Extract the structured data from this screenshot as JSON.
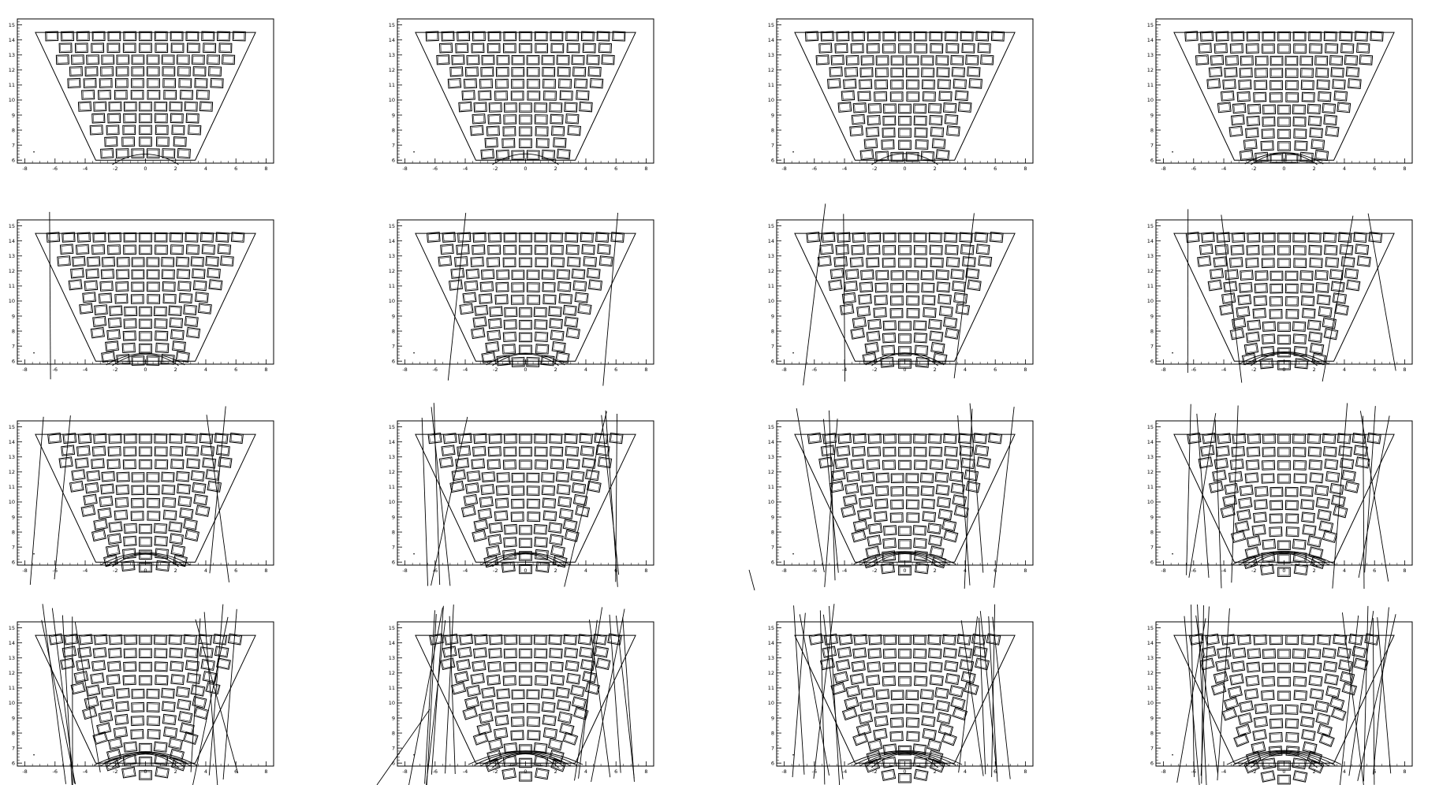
{
  "figure": {
    "rows": 4,
    "cols": 4,
    "line_color": "#000000",
    "background": "#ffffff"
  },
  "chart_data": {
    "type": "grid-of-panels",
    "x_ticks": [
      "-8",
      "-6",
      "-4",
      "-2",
      "0",
      "2",
      "4",
      "6",
      "8"
    ],
    "y_ticks": [
      "6",
      "7",
      "8",
      "9",
      "10",
      "11",
      "12",
      "13",
      "14",
      "15"
    ],
    "xlim": [
      -8.5,
      8.5
    ],
    "ylim": [
      5.8,
      15.4
    ],
    "envelope": {
      "y_top": 14.5,
      "x_top": [
        -7.3,
        7.3
      ],
      "y_bottom": 6.0,
      "x_bottom": [
        -3.3,
        3.3
      ]
    },
    "panels": [
      {
        "index": 1,
        "sag": 0.0,
        "deform": 0.0,
        "stray_lines": 0
      },
      {
        "index": 2,
        "sag": 0.12,
        "deform": 0.05,
        "stray_lines": 0
      },
      {
        "index": 3,
        "sag": 0.25,
        "deform": 0.08,
        "stray_lines": 0
      },
      {
        "index": 4,
        "sag": 0.35,
        "deform": 0.12,
        "stray_lines": 0
      },
      {
        "index": 5,
        "sag": 0.45,
        "deform": 0.16,
        "stray_lines": 1
      },
      {
        "index": 6,
        "sag": 0.55,
        "deform": 0.2,
        "stray_lines": 2
      },
      {
        "index": 7,
        "sag": 0.65,
        "deform": 0.24,
        "stray_lines": 3
      },
      {
        "index": 8,
        "sag": 0.75,
        "deform": 0.28,
        "stray_lines": 4
      },
      {
        "index": 9,
        "sag": 0.85,
        "deform": 0.32,
        "stray_lines": 4
      },
      {
        "index": 10,
        "sag": 0.95,
        "deform": 0.36,
        "stray_lines": 8
      },
      {
        "index": 11,
        "sag": 1.05,
        "deform": 0.4,
        "stray_lines": 8
      },
      {
        "index": 12,
        "sag": 1.15,
        "deform": 0.44,
        "stray_lines": 10
      },
      {
        "index": 13,
        "sag": 1.3,
        "deform": 0.5,
        "stray_lines": 12
      },
      {
        "index": 14,
        "sag": 1.4,
        "deform": 0.55,
        "stray_lines": 14
      },
      {
        "index": 15,
        "sag": 1.5,
        "deform": 0.6,
        "stray_lines": 14
      },
      {
        "index": 16,
        "sag": 1.6,
        "deform": 0.65,
        "stray_lines": 16
      }
    ]
  }
}
